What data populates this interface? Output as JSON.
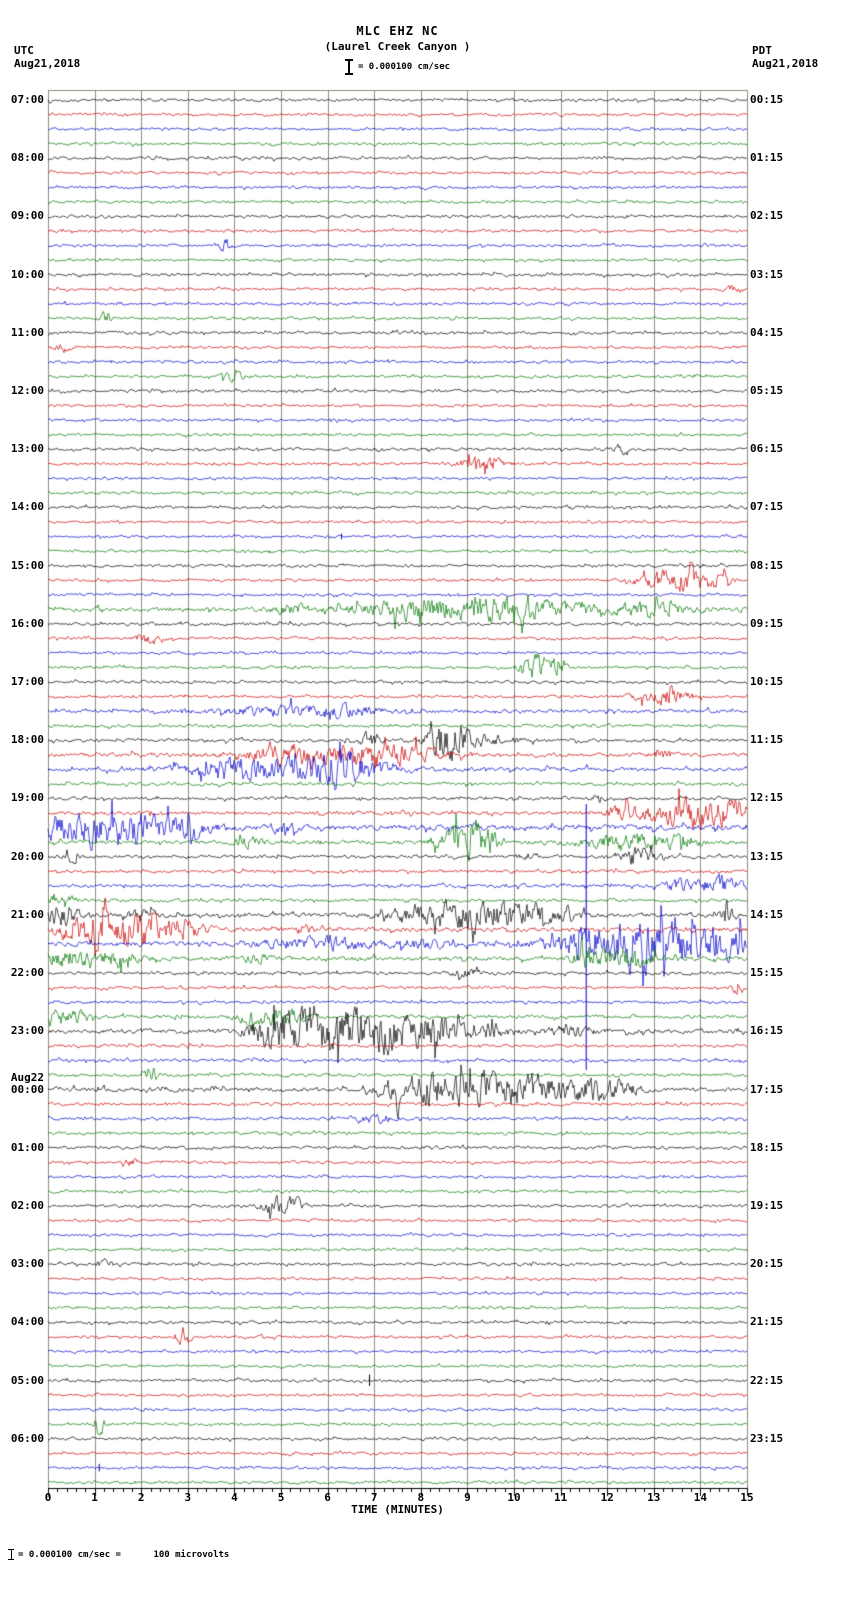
{
  "header": {
    "station": "MLC EHZ NC",
    "location": "(Laurel Creek Canyon )",
    "scale_text": "= 0.000100 cm/sec",
    "left_tz": "UTC",
    "left_date": "Aug21,2018",
    "right_tz": "PDT",
    "right_date": "Aug21,2018"
  },
  "footer": {
    "note": "= 0.000100 cm/sec =      100 microvolts"
  },
  "chart_data": {
    "type": "line",
    "kind": "helicorder-seismogram",
    "xlabel": "TIME (MINUTES)",
    "x_ticks": [
      "0",
      "1",
      "2",
      "3",
      "4",
      "5",
      "6",
      "7",
      "8",
      "9",
      "10",
      "11",
      "12",
      "13",
      "14",
      "15"
    ],
    "minutes_per_line": 15,
    "colors": {
      "trace_cycle": [
        "#000000",
        "#cc0000",
        "#0000cc",
        "#007700"
      ],
      "grid": "#8f8f7c",
      "axis": "#000000"
    },
    "rows": [
      {
        "u": "07:00",
        "p": "00:15",
        "a": 1.1
      },
      {},
      {},
      {},
      {
        "u": "08:00",
        "p": "01:15",
        "a": 1.1
      },
      {},
      {},
      {},
      {
        "u": "09:00",
        "p": "02:15",
        "a": 1.1
      },
      {},
      {
        "e": [
          [
            3.8,
            0.15,
            5
          ]
        ]
      },
      {},
      {
        "u": "10:00",
        "p": "03:15",
        "a": 1.1
      },
      {
        "e": [
          [
            14.7,
            0.15,
            3
          ]
        ]
      },
      {},
      {
        "e": [
          [
            1.25,
            0.12,
            8
          ]
        ]
      },
      {
        "u": "11:00",
        "p": "04:15",
        "a": 1.1
      },
      {
        "e": [
          [
            0.3,
            0.2,
            3
          ]
        ]
      },
      {},
      {
        "e": [
          [
            4.0,
            0.3,
            3
          ]
        ]
      },
      {
        "u": "12:00",
        "p": "05:15",
        "a": 1.1
      },
      {},
      {},
      {},
      {
        "u": "13:00",
        "p": "06:15",
        "a": 1.1,
        "e": [
          [
            12.3,
            0.15,
            3
          ]
        ]
      },
      {
        "e": [
          [
            9.3,
            0.5,
            5
          ]
        ]
      },
      {},
      {},
      {
        "u": "14:00",
        "p": "07:15",
        "a": 1.1
      },
      {},
      {
        "e": [
          [
            6.3,
            0.1,
            3
          ]
        ]
      },
      {},
      {
        "u": "15:00",
        "p": "08:15",
        "a": 1.1
      },
      {
        "e": [
          [
            13.5,
            0.7,
            9
          ],
          [
            14.3,
            0.3,
            4
          ]
        ]
      },
      {},
      {
        "a": 1.6,
        "e": [
          [
            5.2,
            0.4,
            3
          ],
          [
            7.7,
            1.2,
            6
          ],
          [
            9.9,
            1.6,
            8
          ],
          [
            12.9,
            0.8,
            5
          ]
        ]
      },
      {
        "u": "16:00",
        "p": "09:15",
        "a": 1.2
      },
      {
        "e": [
          [
            2.2,
            0.3,
            4
          ]
        ]
      },
      {},
      {
        "e": [
          [
            10.5,
            0.3,
            10
          ],
          [
            10.9,
            0.2,
            6
          ]
        ]
      },
      {
        "u": "17:00",
        "p": "10:15",
        "a": 1.1
      },
      {
        "e": [
          [
            13.2,
            0.6,
            6
          ]
        ]
      },
      {
        "a": 1.3,
        "e": [
          [
            5.0,
            1.5,
            3
          ],
          [
            6.2,
            1.0,
            3
          ]
        ]
      },
      {
        "a": 1.2
      },
      {
        "u": "18:00",
        "p": "11:15",
        "a": 1.3,
        "e": [
          [
            6.9,
            0.2,
            5
          ],
          [
            8.55,
            0.35,
            16
          ],
          [
            9.2,
            0.8,
            4
          ]
        ]
      },
      {
        "a": 1.5,
        "e": [
          [
            4.8,
            0.6,
            4
          ],
          [
            5.8,
            1.5,
            5
          ],
          [
            7.3,
            1.0,
            7
          ],
          [
            13.2,
            0.2,
            3
          ]
        ]
      },
      {
        "a": 1.5,
        "e": [
          [
            3.8,
            0.5,
            4
          ],
          [
            5.0,
            1.8,
            7
          ],
          [
            6.3,
            0.7,
            10
          ]
        ]
      },
      {
        "a": 1.2
      },
      {
        "u": "19:00",
        "p": "12:15",
        "a": 1.2,
        "e": [
          [
            11.8,
            0.15,
            3
          ]
        ]
      },
      {
        "a": 1.4,
        "e": [
          [
            12.3,
            0.3,
            4
          ],
          [
            13.7,
            0.9,
            10
          ],
          [
            14.7,
            0.4,
            7
          ]
        ]
      },
      {
        "a": 2.0,
        "e": [
          [
            0.7,
            1.0,
            11
          ],
          [
            1.8,
            0.9,
            8
          ],
          [
            3.0,
            0.6,
            5
          ],
          [
            5.0,
            0.3,
            3
          ]
        ]
      },
      {
        "a": 1.5,
        "e": [
          [
            4.3,
            0.3,
            4
          ],
          [
            8.9,
            0.5,
            12
          ],
          [
            9.4,
            0.3,
            6
          ],
          [
            12.4,
            1.0,
            6
          ],
          [
            13.5,
            0.4,
            5
          ]
        ]
      },
      {
        "u": "20:00",
        "p": "13:15",
        "a": 1.3,
        "e": [
          [
            0.5,
            0.12,
            6
          ],
          [
            10.3,
            0.2,
            3
          ],
          [
            12.6,
            0.4,
            7
          ]
        ]
      },
      {
        "a": 1.2
      },
      {
        "a": 1.3,
        "e": [
          [
            13.5,
            0.3,
            4
          ],
          [
            14.4,
            0.5,
            7
          ]
        ]
      },
      {
        "a": 1.2,
        "e": [
          [
            0.3,
            0.3,
            4
          ]
        ]
      },
      {
        "u": "21:00",
        "p": "14:15",
        "a": 1.6,
        "e": [
          [
            0.3,
            0.4,
            8
          ],
          [
            2.0,
            0.3,
            4
          ],
          [
            8.6,
            1.0,
            9
          ],
          [
            9.9,
            0.9,
            8
          ],
          [
            11.0,
            0.4,
            5
          ],
          [
            14.6,
            0.15,
            8
          ]
        ]
      },
      {
        "a": 1.6,
        "e": [
          [
            0.7,
            0.5,
            9
          ],
          [
            1.8,
            0.8,
            12
          ],
          [
            3.0,
            0.4,
            6
          ],
          [
            5.5,
            0.2,
            3
          ]
        ]
      },
      {
        "a": 1.8,
        "e": [
          [
            5.8,
            1.2,
            4
          ],
          [
            8.0,
            0.5,
            3
          ],
          [
            11.55,
            0.08,
            140
          ],
          [
            12.2,
            1.2,
            12
          ],
          [
            13.3,
            1.5,
            10
          ],
          [
            14.6,
            0.5,
            9
          ]
        ]
      },
      {
        "a": 1.6,
        "e": [
          [
            0.5,
            0.7,
            6
          ],
          [
            1.6,
            0.4,
            5
          ],
          [
            4.5,
            0.3,
            3
          ],
          [
            11.6,
            0.25,
            8
          ],
          [
            12.4,
            0.7,
            6
          ]
        ]
      },
      {
        "u": "22:00",
        "p": "15:15",
        "a": 1.2,
        "e": [
          [
            9.0,
            0.3,
            3
          ]
        ]
      },
      {
        "a": 1.1,
        "e": [
          [
            14.8,
            0.12,
            6
          ]
        ]
      },
      {
        "a": 1.1
      },
      {
        "a": 1.3,
        "e": [
          [
            0.4,
            0.4,
            6
          ],
          [
            4.3,
            0.3,
            4
          ],
          [
            5.0,
            0.5,
            7
          ]
        ]
      },
      {
        "u": "23:00",
        "p": "16:15",
        "a": 1.7,
        "e": [
          [
            4.6,
            0.3,
            6
          ],
          [
            5.2,
            0.7,
            9
          ],
          [
            6.1,
            1.0,
            14
          ],
          [
            7.4,
            0.9,
            12
          ],
          [
            8.4,
            0.5,
            8
          ],
          [
            9.5,
            0.4,
            5
          ],
          [
            11.2,
            0.4,
            5
          ]
        ]
      },
      {
        "a": 1.2
      },
      {
        "a": 1.2
      },
      {
        "a": 1.2,
        "e": [
          [
            2.2,
            0.12,
            9
          ]
        ]
      },
      {
        "n": "Aug22",
        "u": "00:00",
        "p": "17:15",
        "a": 1.6,
        "e": [
          [
            7.3,
            0.3,
            5
          ],
          [
            8.0,
            0.6,
            7
          ],
          [
            9.0,
            1.0,
            11
          ],
          [
            10.2,
            0.9,
            9
          ],
          [
            11.5,
            0.6,
            7
          ],
          [
            12.3,
            0.4,
            5
          ]
        ]
      },
      {
        "a": 1.1
      },
      {
        "a": 1.1,
        "e": [
          [
            7.0,
            0.5,
            3
          ]
        ]
      },
      {
        "a": 1.1
      },
      {
        "u": "01:00",
        "p": "18:15",
        "a": 1.2
      },
      {
        "e": [
          [
            1.8,
            0.12,
            5
          ]
        ]
      },
      {},
      {},
      {
        "u": "02:00",
        "p": "19:15",
        "a": 1.1,
        "e": [
          [
            4.9,
            0.35,
            6
          ],
          [
            5.3,
            0.2,
            4
          ]
        ]
      },
      {},
      {},
      {},
      {
        "u": "03:00",
        "p": "20:15",
        "a": 1.1,
        "e": [
          [
            1.2,
            0.12,
            4
          ]
        ]
      },
      {},
      {},
      {},
      {
        "u": "04:00",
        "p": "21:15",
        "a": 1.1
      },
      {
        "e": [
          [
            2.9,
            0.15,
            7
          ]
        ]
      },
      {},
      {},
      {
        "u": "05:00",
        "p": "22:15",
        "a": 1.1,
        "e": [
          [
            6.9,
            0.1,
            6
          ]
        ]
      },
      {},
      {},
      {
        "e": [
          [
            1.1,
            0.12,
            7
          ]
        ]
      },
      {
        "u": "06:00",
        "p": "23:15",
        "a": 1.1
      },
      {},
      {
        "e": [
          [
            1.1,
            0.1,
            4
          ]
        ]
      },
      {}
    ]
  }
}
